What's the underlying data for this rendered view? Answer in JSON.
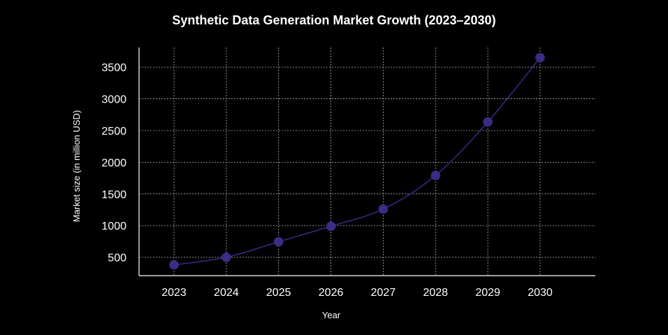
{
  "chart_data": {
    "type": "line",
    "title": "Synthetic Data Generation Market Growth (2023–2030)",
    "xlabel": "Year",
    "ylabel": "Market size (in million USD)",
    "x": [
      "2023",
      "2024",
      "2025",
      "2026",
      "2027",
      "2028",
      "2029",
      "2030"
    ],
    "values": [
      380,
      500,
      745,
      990,
      1260,
      1790,
      2635,
      3650
    ],
    "ylim": [
      210,
      3810
    ],
    "yticks": [
      500,
      1000,
      1500,
      2000,
      2500,
      3000,
      3500
    ],
    "grid": true,
    "colors": {
      "background": "#000000",
      "line": "#3a2b86",
      "marker": "#3d2b86",
      "text": "#ffffff"
    }
  }
}
